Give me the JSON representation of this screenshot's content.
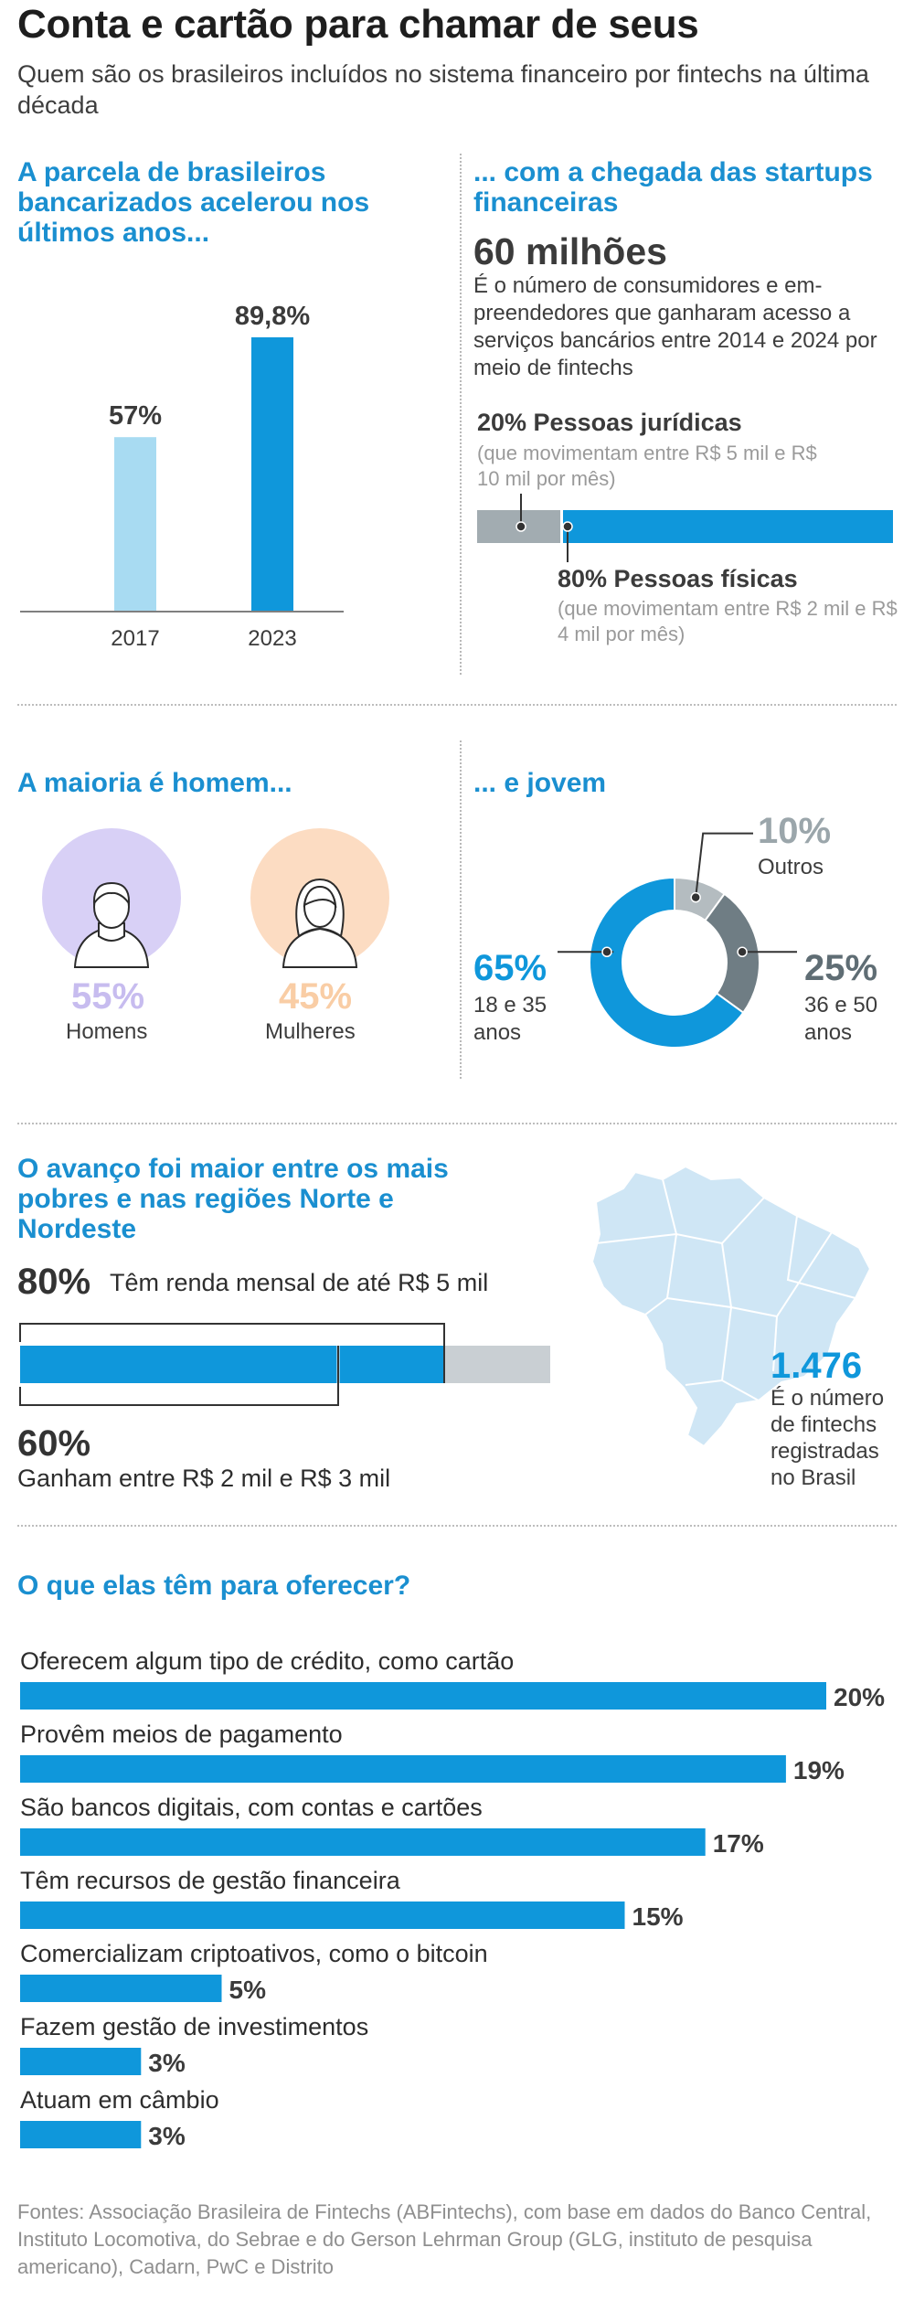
{
  "header": {
    "title": "Conta e cartão para chamar de seus",
    "subtitle": "Quem são os brasileiros incluídos no sistema financeiro por fintechs na última década"
  },
  "banked": {
    "title": "A parcela de brasileiros bancarizados acelerou nos últimos anos..."
  },
  "startups": {
    "title": "... com a chegada das startups financeiras",
    "big_number": "60 milhões",
    "description": "É o número de consumidores e em-preendedores que ganharam acesso a serviços bancários entre 2014 e 2024 por meio de fintechs",
    "pj_label": "20% Pessoas jurídicas",
    "pj_note": "(que movimentam entre R$ 5 mil e R$ 10 mil por mês)",
    "pf_label": "80% Pessoas físicas",
    "pf_note": "(que movimentam entre R$ 2 mil e R$ 4 mil por mês)"
  },
  "gender": {
    "title": "A maioria  é homem...",
    "men_pct": "55%",
    "men_label": "Homens",
    "women_pct": "45%",
    "women_label": "Mulheres"
  },
  "age": {
    "title": "... e jovem",
    "young_pct": "65%",
    "young_label": "18 e 35 anos",
    "mid_pct": "25%",
    "mid_label": "36 e 50 anos",
    "other_pct": "10%",
    "other_label": "Outros"
  },
  "income": {
    "title": "O avanço foi maior entre os mais pobres e nas regiões Norte e Nordeste",
    "pct80": "80%",
    "label80": "Têm renda mensal de até R$ 5 mil",
    "pct60": "60%",
    "label60": "Ganham entre R$ 2 mil e R$ 3 mil"
  },
  "brazil": {
    "number": "1.476",
    "text": "É o número de fintechs registradas no Brasil"
  },
  "offer": {
    "title": "O que elas têm para oferecer?"
  },
  "footer": {
    "sources": "Fontes: Associação Brasileira de Fintechs (ABFintechs), com base em dados do Banco Central, Instituto Locomotiva, do Sebrae e do Gerson Lehrman Group (GLG, instituto de pesquisa americano), Cadarn, PwC e Distrito"
  },
  "colors": {
    "blue": "#0f97db",
    "light_blue": "#a8dbf2",
    "gray": "#6f7d84",
    "light_gray": "#b4bcc0",
    "bar_gray": "#c9cfd3",
    "lavender": "#d8d0f6",
    "peach": "#fcdcc2"
  },
  "chart_data": [
    {
      "type": "bar",
      "categories": [
        "2017",
        "2023"
      ],
      "values": [
        57,
        89.8
      ],
      "value_labels": [
        "57%",
        "89,8%"
      ]
    },
    {
      "type": "bar",
      "orientation": "horizontal-stacked",
      "categories": [
        "20% Pessoas jurídicas",
        "80% Pessoas físicas"
      ],
      "values": [
        20,
        80
      ]
    },
    {
      "type": "pie",
      "style": "donut",
      "categories": [
        "18 e 35 anos",
        "36 e 50 anos",
        "Outros"
      ],
      "values": [
        65,
        25,
        10
      ]
    },
    {
      "type": "bar",
      "orientation": "horizontal",
      "categories": [
        "Têm renda mensal de até R$ 5 mil",
        "Ganham entre R$ 2 mil e R$ 3 mil"
      ],
      "values": [
        80,
        60
      ]
    },
    {
      "type": "bar",
      "orientation": "horizontal",
      "categories": [
        "Oferecem algum tipo de crédito, como cartão",
        "Provêm meios de pagamento",
        "São bancos digitais, com contas e cartões",
        "Têm recursos de gestão financeira",
        "Comercializam criptoativos, como o bitcoin",
        "Fazem gestão de investimentos",
        "Atuam em câmbio"
      ],
      "values": [
        20,
        19,
        17,
        15,
        5,
        3,
        3
      ],
      "value_labels": [
        "20%",
        "19%",
        "17%",
        "15%",
        "5%",
        "3%",
        "3%"
      ]
    }
  ]
}
